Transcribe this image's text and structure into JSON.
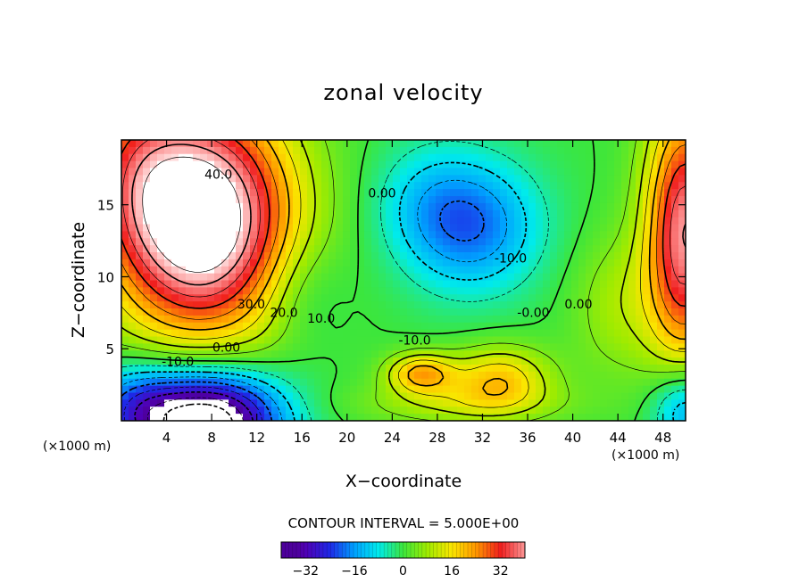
{
  "chart_data": {
    "type": "heatmap",
    "title": "zonal velocity",
    "xlabel": "X−coordinate",
    "ylabel": "Z−coordinate",
    "x_unit_left": "(×1000 m)",
    "x_unit_right": "(×1000 m)",
    "xlim": [
      0,
      50
    ],
    "ylim": [
      0,
      19.5
    ],
    "x_ticks": [
      4,
      8,
      12,
      16,
      20,
      24,
      28,
      32,
      36,
      40,
      44,
      48
    ],
    "y_ticks": [
      5,
      10,
      15
    ],
    "contour_interval_text": "CONTOUR INTERVAL = 5.000E+00",
    "contour_interval": 5,
    "contour_labels": [
      {
        "text": "40.0",
        "x": 8.6,
        "y": 16.8
      },
      {
        "text": "30.0",
        "x": 11.5,
        "y": 7.8
      },
      {
        "text": "20.0",
        "x": 14.4,
        "y": 7.2
      },
      {
        "text": "10.0",
        "x": 17.7,
        "y": 6.8
      },
      {
        "text": "0.00",
        "x": 9.3,
        "y": 4.8
      },
      {
        "text": "-10.0",
        "x": 5.0,
        "y": 3.8
      },
      {
        "text": "0.00",
        "x": 23.1,
        "y": 15.5
      },
      {
        "text": "-10.0",
        "x": 34.5,
        "y": 11.0
      },
      {
        "text": "-10.0",
        "x": 26.0,
        "y": 5.3
      },
      {
        "text": "-0.00",
        "x": 36.5,
        "y": 7.2
      },
      {
        "text": "0.00",
        "x": 40.5,
        "y": 7.8
      }
    ],
    "extrema": [
      {
        "kind": "max",
        "x": 8,
        "y": 13,
        "value": 48
      },
      {
        "kind": "min",
        "x": 7.5,
        "y": 1,
        "value": -40
      },
      {
        "kind": "min",
        "x": 31,
        "y": 13.5,
        "value": -17
      },
      {
        "kind": "max",
        "x": 26.5,
        "y": 3.3,
        "value": 22
      },
      {
        "kind": "max",
        "x": 34.5,
        "y": 3.0,
        "value": 18
      },
      {
        "kind": "max",
        "x": 49.5,
        "y": 11,
        "value": 32
      },
      {
        "kind": "min",
        "x": 49.5,
        "y": 1,
        "value": -14
      }
    ],
    "colorbar": {
      "range": [
        -40,
        40
      ],
      "tick_labels": [
        "−32",
        "−16",
        "0",
        "16",
        "32"
      ],
      "tick_values": [
        -32,
        -16,
        0,
        16,
        32
      ]
    },
    "missing_value_regions": "values above 45 and below -35 are rendered white",
    "grid": false,
    "legend": "colorbar-bottom"
  }
}
